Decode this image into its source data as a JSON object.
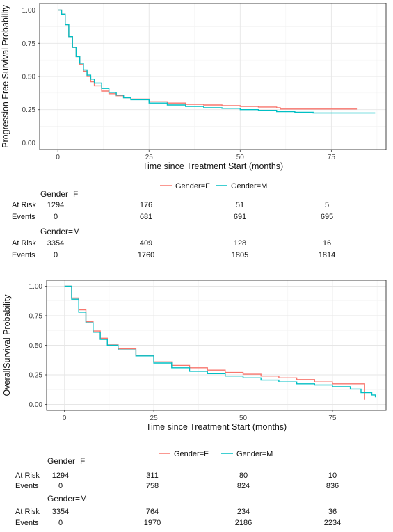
{
  "chart_data": [
    {
      "type": "line",
      "subtype": "kaplan-meier",
      "xlabel": "Time since Treatment Start (months)",
      "ylabel": "Progression Free Survival Probability",
      "xlim": [
        -5,
        90
      ],
      "ylim": [
        -0.05,
        1.05
      ],
      "xticks": [
        0,
        25,
        50,
        75
      ],
      "yticks": [
        0.0,
        0.25,
        0.5,
        0.75,
        1.0
      ],
      "ytick_labels": [
        "0.00",
        "0.25",
        "0.50",
        "0.75",
        "1.00"
      ],
      "grid": true,
      "legend_position": "bottom",
      "series": [
        {
          "name": "Gender=F",
          "color": "#F8766D",
          "x": [
            0,
            1,
            2,
            3,
            4,
            5,
            6,
            7,
            8,
            9,
            10,
            12,
            14,
            16,
            18,
            20,
            25,
            30,
            35,
            40,
            45,
            50,
            55,
            60,
            61,
            70,
            82
          ],
          "y": [
            1.0,
            0.97,
            0.89,
            0.8,
            0.72,
            0.65,
            0.59,
            0.54,
            0.5,
            0.46,
            0.43,
            0.39,
            0.37,
            0.355,
            0.34,
            0.33,
            0.31,
            0.3,
            0.29,
            0.285,
            0.28,
            0.275,
            0.27,
            0.265,
            0.255,
            0.255,
            0.255
          ]
        },
        {
          "name": "Gender=M",
          "color": "#00BFC4",
          "x": [
            0,
            1,
            2,
            3,
            4,
            5,
            6,
            7,
            8,
            9,
            10,
            12,
            14,
            16,
            18,
            20,
            25,
            30,
            35,
            40,
            45,
            50,
            55,
            60,
            65,
            70,
            80,
            87
          ],
          "y": [
            1.0,
            0.97,
            0.89,
            0.8,
            0.72,
            0.65,
            0.6,
            0.55,
            0.51,
            0.48,
            0.45,
            0.41,
            0.38,
            0.36,
            0.34,
            0.325,
            0.3,
            0.285,
            0.275,
            0.265,
            0.26,
            0.25,
            0.245,
            0.235,
            0.23,
            0.225,
            0.225,
            0.225
          ]
        }
      ]
    },
    {
      "type": "line",
      "subtype": "kaplan-meier",
      "xlabel": "Time since Treatment Start (months)",
      "ylabel": "OverallSurvival Probability",
      "xlim": [
        -5,
        90
      ],
      "ylim": [
        -0.05,
        1.05
      ],
      "xticks": [
        0,
        25,
        50,
        75
      ],
      "yticks": [
        0.0,
        0.25,
        0.5,
        0.75,
        1.0
      ],
      "ytick_labels": [
        "0.00",
        "0.25",
        "0.50",
        "0.75",
        "1.00"
      ],
      "grid": true,
      "legend_position": "bottom",
      "series": [
        {
          "name": "Gender=F",
          "color": "#F8766D",
          "x": [
            0,
            2,
            4,
            6,
            8,
            10,
            12,
            15,
            20,
            25,
            30,
            35,
            40,
            45,
            50,
            55,
            60,
            65,
            70,
            75,
            80,
            84
          ],
          "y": [
            1.0,
            0.9,
            0.8,
            0.7,
            0.62,
            0.56,
            0.51,
            0.47,
            0.41,
            0.36,
            0.33,
            0.31,
            0.29,
            0.27,
            0.255,
            0.24,
            0.225,
            0.21,
            0.19,
            0.175,
            0.175,
            0.04
          ]
        },
        {
          "name": "Gender=M",
          "color": "#00BFC4",
          "x": [
            0,
            2,
            4,
            6,
            8,
            10,
            12,
            15,
            20,
            25,
            30,
            35,
            40,
            45,
            50,
            55,
            60,
            65,
            70,
            75,
            80,
            83,
            85,
            86,
            87
          ],
          "y": [
            1.0,
            0.89,
            0.78,
            0.69,
            0.61,
            0.55,
            0.5,
            0.46,
            0.41,
            0.35,
            0.31,
            0.28,
            0.26,
            0.24,
            0.225,
            0.205,
            0.19,
            0.175,
            0.165,
            0.15,
            0.13,
            0.1,
            0.1,
            0.08,
            0.06
          ]
        }
      ]
    }
  ],
  "risk_tables": [
    {
      "groups": [
        {
          "title": "Gender=F",
          "at_risk": [
            "1294",
            "176",
            "51",
            "5"
          ],
          "events": [
            "0",
            "681",
            "691",
            "695"
          ]
        },
        {
          "title": "Gender=M",
          "at_risk": [
            "3354",
            "409",
            "128",
            "16"
          ],
          "events": [
            "0",
            "1760",
            "1805",
            "1814"
          ]
        }
      ]
    },
    {
      "groups": [
        {
          "title": "Gender=F",
          "at_risk": [
            "1294",
            "311",
            "80",
            "10"
          ],
          "events": [
            "0",
            "758",
            "824",
            "836"
          ]
        },
        {
          "title": "Gender=M",
          "at_risk": [
            "3354",
            "764",
            "234",
            "36"
          ],
          "events": [
            "0",
            "1970",
            "2186",
            "2234"
          ]
        }
      ]
    }
  ],
  "labels": {
    "at_risk": "At Risk",
    "events": "Events"
  }
}
